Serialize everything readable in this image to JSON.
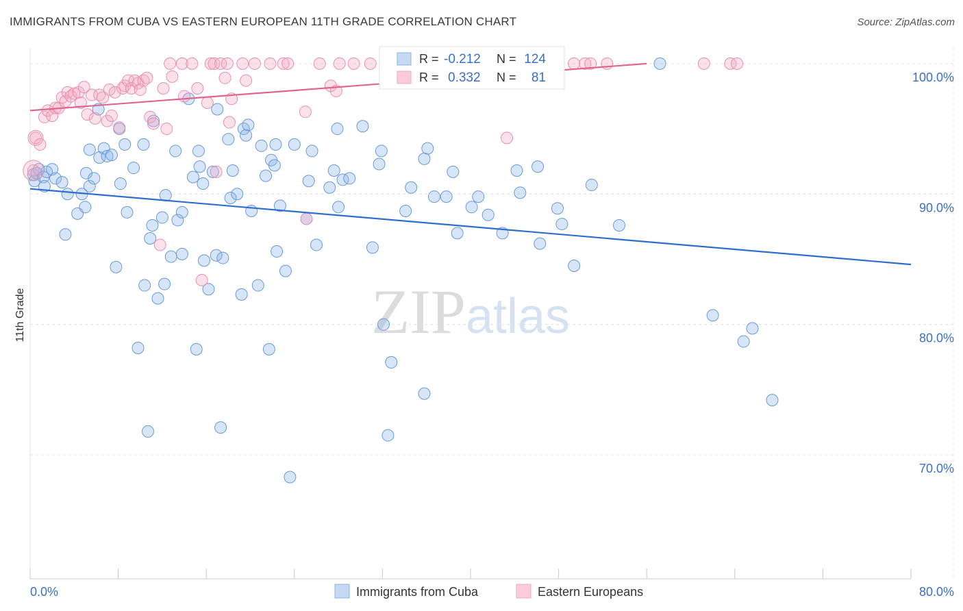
{
  "chart_data": {
    "type": "scatter",
    "title": "IMMIGRANTS FROM CUBA VS EASTERN EUROPEAN 11TH GRADE CORRELATION CHART",
    "source": "Source: ZipAtlas.com",
    "ylabel": "11th Grade",
    "xlabel": "",
    "xlim": [
      0,
      80
    ],
    "ylim": [
      60.5,
      101.2
    ],
    "x_tick_labels": [
      {
        "x": 0,
        "label": "0.0%"
      },
      {
        "x": 80,
        "label": "80.0%"
      }
    ],
    "y_tick_labels": [
      {
        "y": 100,
        "label": "100.0%"
      },
      {
        "y": 90,
        "label": "90.0%"
      },
      {
        "y": 80,
        "label": "80.0%"
      },
      {
        "y": 70,
        "label": "70.0%"
      }
    ],
    "grid": true,
    "watermark": "ZIPatlas",
    "legend_stats": [
      {
        "r_label": "R =",
        "r": "-0.212",
        "n_label": "N =",
        "n": "124"
      },
      {
        "r_label": "R =",
        "r": "0.332",
        "n_label": "N =",
        "n": "81"
      }
    ],
    "series": [
      {
        "name": "Immigrants from Cuba",
        "color": "#8ab4e8",
        "stroke": "#6a9ad8",
        "trend_color": "#2d6fd0",
        "trend": [
          [
            0,
            90.4
          ],
          [
            80,
            84.6
          ]
        ],
        "points": [
          [
            0.3,
            91.5
          ],
          [
            0.4,
            91.0
          ],
          [
            0.8,
            91.9
          ],
          [
            0.6,
            91.6
          ],
          [
            1.2,
            91.3
          ],
          [
            1.3,
            90.6
          ],
          [
            1.5,
            91.7
          ],
          [
            2.0,
            91.9
          ],
          [
            2.3,
            91.2
          ],
          [
            2.9,
            90.9
          ],
          [
            3.4,
            90.0
          ],
          [
            3.2,
            86.9
          ],
          [
            4.3,
            88.5
          ],
          [
            4.7,
            90.0
          ],
          [
            5.1,
            91.6
          ],
          [
            5.0,
            89.0
          ],
          [
            5.4,
            90.6
          ],
          [
            5.8,
            91.2
          ],
          [
            5.4,
            93.4
          ],
          [
            6.2,
            96.5
          ],
          [
            6.3,
            92.8
          ],
          [
            6.7,
            93.5
          ],
          [
            7.0,
            92.9
          ],
          [
            7.4,
            93.0
          ],
          [
            7.8,
            84.4
          ],
          [
            8.1,
            95.0
          ],
          [
            8.2,
            90.8
          ],
          [
            8.6,
            93.8
          ],
          [
            8.8,
            88.6
          ],
          [
            9.4,
            92.0
          ],
          [
            9.8,
            78.2
          ],
          [
            10.3,
            93.8
          ],
          [
            10.4,
            83.0
          ],
          [
            10.7,
            71.8
          ],
          [
            10.9,
            86.6
          ],
          [
            11.1,
            87.6
          ],
          [
            11.2,
            95.6
          ],
          [
            11.6,
            82.0
          ],
          [
            12.0,
            88.2
          ],
          [
            12.2,
            83.1
          ],
          [
            12.3,
            89.9
          ],
          [
            12.8,
            85.2
          ],
          [
            13.2,
            93.3
          ],
          [
            13.4,
            88.0
          ],
          [
            13.8,
            85.4
          ],
          [
            13.8,
            88.6
          ],
          [
            14.4,
            97.3
          ],
          [
            14.8,
            91.3
          ],
          [
            15.1,
            78.1
          ],
          [
            15.3,
            93.3
          ],
          [
            15.4,
            92.1
          ],
          [
            15.7,
            90.8
          ],
          [
            15.8,
            84.9
          ],
          [
            16.2,
            82.7
          ],
          [
            16.6,
            91.7
          ],
          [
            16.9,
            85.3
          ],
          [
            17.0,
            96.5
          ],
          [
            17.5,
            85.1
          ],
          [
            17.3,
            72.1
          ],
          [
            18.0,
            94.2
          ],
          [
            18.2,
            89.7
          ],
          [
            18.4,
            91.8
          ],
          [
            18.8,
            90.0
          ],
          [
            19.2,
            82.3
          ],
          [
            19.4,
            95.0
          ],
          [
            19.6,
            94.5
          ],
          [
            19.8,
            95.3
          ],
          [
            20.1,
            88.7
          ],
          [
            20.7,
            83.0
          ],
          [
            21.0,
            93.7
          ],
          [
            21.4,
            91.4
          ],
          [
            21.7,
            78.1
          ],
          [
            21.9,
            92.6
          ],
          [
            22.2,
            92.2
          ],
          [
            22.3,
            93.8
          ],
          [
            22.4,
            85.6
          ],
          [
            22.7,
            89.1
          ],
          [
            23.2,
            84.1
          ],
          [
            23.6,
            68.3
          ],
          [
            24.0,
            93.8
          ],
          [
            25.1,
            88.1
          ],
          [
            25.3,
            91.0
          ],
          [
            25.6,
            93.3
          ],
          [
            26.0,
            86.1
          ],
          [
            27.2,
            90.5
          ],
          [
            27.6,
            91.8
          ],
          [
            27.9,
            95.0
          ],
          [
            28.0,
            89.0
          ],
          [
            28.4,
            91.1
          ],
          [
            29.0,
            91.2
          ],
          [
            30.2,
            95.2
          ],
          [
            31.1,
            85.9
          ],
          [
            31.7,
            92.3
          ],
          [
            31.9,
            93.3
          ],
          [
            32.1,
            80.0
          ],
          [
            32.5,
            71.5
          ],
          [
            32.8,
            77.1
          ],
          [
            34.1,
            88.7
          ],
          [
            34.6,
            90.5
          ],
          [
            35.8,
            92.7
          ],
          [
            35.8,
            74.7
          ],
          [
            36.1,
            93.5
          ],
          [
            36.7,
            89.8
          ],
          [
            37.8,
            89.8
          ],
          [
            38.4,
            91.7
          ],
          [
            38.8,
            87.0
          ],
          [
            40.1,
            89.0
          ],
          [
            40.7,
            89.8
          ],
          [
            41.6,
            88.4
          ],
          [
            42.9,
            87.0
          ],
          [
            44.2,
            91.8
          ],
          [
            44.5,
            90.1
          ],
          [
            46.1,
            92.1
          ],
          [
            46.3,
            86.2
          ],
          [
            47.9,
            88.9
          ],
          [
            48.3,
            87.7
          ],
          [
            49.4,
            84.5
          ],
          [
            51.0,
            90.7
          ],
          [
            57.2,
            100.0
          ],
          [
            53.5,
            87.6
          ],
          [
            62.0,
            80.7
          ],
          [
            64.8,
            78.7
          ],
          [
            65.6,
            79.7
          ],
          [
            67.4,
            74.2
          ]
        ]
      },
      {
        "name": "Eastern Europeans",
        "color": "#f4a8c4",
        "stroke": "#e890b0",
        "trend_color": "#e06690",
        "trend": [
          [
            0,
            96.4
          ],
          [
            56,
            100.0
          ]
        ],
        "points": [
          [
            0.3,
            91.8
          ],
          [
            0.5,
            94.3
          ],
          [
            0.9,
            93.8
          ],
          [
            1.3,
            95.9
          ],
          [
            1.6,
            96.4
          ],
          [
            2.0,
            96.0
          ],
          [
            2.3,
            96.6
          ],
          [
            2.6,
            96.6
          ],
          [
            2.9,
            97.4
          ],
          [
            3.2,
            97.1
          ],
          [
            3.4,
            97.8
          ],
          [
            3.7,
            97.5
          ],
          [
            4.0,
            97.7
          ],
          [
            4.4,
            97.8
          ],
          [
            4.6,
            97.0
          ],
          [
            4.9,
            98.2
          ],
          [
            5.2,
            96.1
          ],
          [
            5.6,
            97.6
          ],
          [
            5.9,
            95.8
          ],
          [
            6.3,
            97.6
          ],
          [
            6.6,
            97.4
          ],
          [
            7.0,
            95.6
          ],
          [
            7.2,
            98.0
          ],
          [
            7.4,
            96.0
          ],
          [
            7.7,
            97.8
          ],
          [
            8.1,
            95.1
          ],
          [
            8.4,
            98.1
          ],
          [
            8.6,
            98.3
          ],
          [
            8.9,
            98.7
          ],
          [
            9.2,
            98.1
          ],
          [
            9.5,
            98.7
          ],
          [
            9.8,
            98.5
          ],
          [
            10.0,
            98.0
          ],
          [
            10.3,
            98.7
          ],
          [
            10.6,
            98.9
          ],
          [
            10.9,
            95.9
          ],
          [
            11.2,
            95.4
          ],
          [
            11.8,
            86.1
          ],
          [
            12.1,
            98.1
          ],
          [
            12.4,
            95.0
          ],
          [
            12.7,
            100.0
          ],
          [
            12.9,
            99.0
          ],
          [
            13.8,
            100.0
          ],
          [
            14.0,
            97.5
          ],
          [
            14.7,
            100.0
          ],
          [
            15.2,
            98.1
          ],
          [
            15.6,
            83.4
          ],
          [
            16.1,
            97.0
          ],
          [
            16.4,
            100.0
          ],
          [
            16.7,
            100.0
          ],
          [
            16.9,
            91.7
          ],
          [
            17.3,
            100.0
          ],
          [
            17.7,
            98.9
          ],
          [
            17.9,
            100.0
          ],
          [
            18.1,
            95.5
          ],
          [
            18.3,
            97.3
          ],
          [
            19.3,
            100.0
          ],
          [
            19.6,
            98.7
          ],
          [
            20.4,
            100.0
          ],
          [
            21.8,
            100.0
          ],
          [
            23.0,
            100.0
          ],
          [
            23.4,
            100.0
          ],
          [
            26.3,
            100.0
          ],
          [
            27.3,
            98.3
          ],
          [
            28.1,
            100.0
          ],
          [
            29.4,
            100.0
          ],
          [
            30.9,
            100.0
          ],
          [
            25.1,
            88.1
          ],
          [
            32.8,
            100.0
          ],
          [
            33.9,
            100.0
          ],
          [
            43.3,
            94.3
          ],
          [
            49.4,
            100.0
          ],
          [
            50.4,
            100.0
          ],
          [
            50.9,
            100.0
          ],
          [
            52.4,
            100.0
          ],
          [
            61.2,
            100.0
          ],
          [
            63.6,
            100.0
          ],
          [
            64.2,
            100.0
          ],
          [
            40.7,
            100.0
          ],
          [
            27.8,
            97.9
          ],
          [
            25.0,
            96.3
          ]
        ]
      }
    ]
  }
}
